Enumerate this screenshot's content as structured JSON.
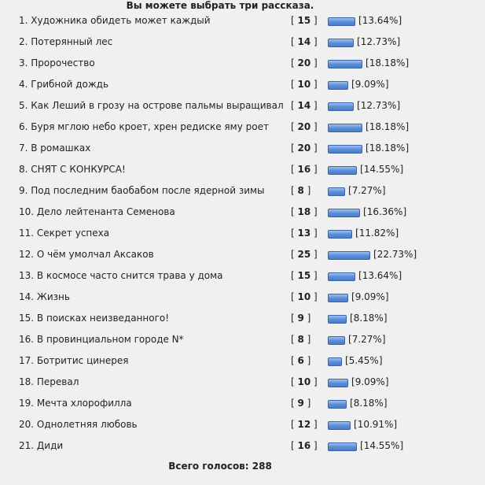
{
  "heading": "Вы можете выбрать три рассказа.",
  "bar_color": "#5d8fd8",
  "items": [
    {
      "label": "1. Художника обидеть может каждый",
      "votes": "15",
      "percent": "13.64%",
      "p": 13.64
    },
    {
      "label": "2. Потерянный лес",
      "votes": "14",
      "percent": "12.73%",
      "p": 12.73
    },
    {
      "label": "3. Пророчество",
      "votes": "20",
      "percent": "18.18%",
      "p": 18.18
    },
    {
      "label": "4. Грибной дождь",
      "votes": "10",
      "percent": "9.09%",
      "p": 9.09
    },
    {
      "label": "5. Как Леший в грозу на острове пальмы выращивал",
      "votes": "14",
      "percent": "12.73%",
      "p": 12.73
    },
    {
      "label": "6. Буря мглою небо кроет, хрен редиске яму роет",
      "votes": "20",
      "percent": "18.18%",
      "p": 18.18
    },
    {
      "label": "7. В ромашках",
      "votes": "20",
      "percent": "18.18%",
      "p": 18.18
    },
    {
      "label": "8. СНЯТ С КОНКУРСА!",
      "votes": "16",
      "percent": "14.55%",
      "p": 14.55
    },
    {
      "label": "9. Под последним баобабом после ядерной зимы",
      "votes": "8",
      "percent": "7.27%",
      "p": 7.27
    },
    {
      "label": "10. Дело лейтенанта Семенова",
      "votes": "18",
      "percent": "16.36%",
      "p": 16.36
    },
    {
      "label": "11. Секрет успеха",
      "votes": "13",
      "percent": "11.82%",
      "p": 11.82
    },
    {
      "label": "12. О чём умолчал Аксаков",
      "votes": "25",
      "percent": "22.73%",
      "p": 22.73
    },
    {
      "label": "13. В космосе часто снится трава у дома",
      "votes": "15",
      "percent": "13.64%",
      "p": 13.64
    },
    {
      "label": "14. Жизнь",
      "votes": "10",
      "percent": "9.09%",
      "p": 9.09
    },
    {
      "label": "15. В поисках неизведанного!",
      "votes": "9",
      "percent": "8.18%",
      "p": 8.18
    },
    {
      "label": "16. В провинциальном городе N*",
      "votes": "8",
      "percent": "7.27%",
      "p": 7.27
    },
    {
      "label": "17. Ботритис цинерея",
      "votes": "6",
      "percent": "5.45%",
      "p": 5.45
    },
    {
      "label": "18. Перевал",
      "votes": "10",
      "percent": "9.09%",
      "p": 9.09
    },
    {
      "label": "19. Мечта хлорофилла",
      "votes": "9",
      "percent": "8.18%",
      "p": 8.18
    },
    {
      "label": "20. Однолетняя любовь",
      "votes": "12",
      "percent": "10.91%",
      "p": 10.91
    },
    {
      "label": "21. Диди",
      "votes": "16",
      "percent": "14.55%",
      "p": 14.55
    }
  ],
  "total": "Всего голосов: 288"
}
